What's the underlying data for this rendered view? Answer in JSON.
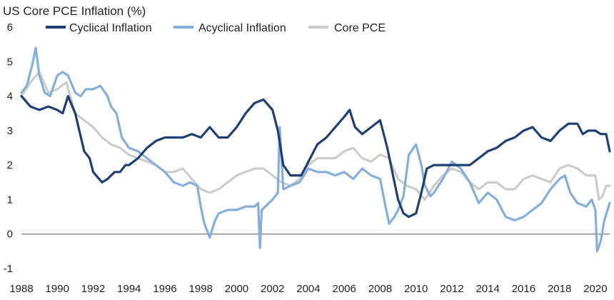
{
  "chart_data": {
    "type": "line",
    "title": "US Core PCE Inflation (%)",
    "xlabel": "",
    "ylabel": "",
    "xlim": [
      1988,
      2020.8
    ],
    "ylim": [
      -1,
      6
    ],
    "x_ticks": [
      "1988",
      "1990",
      "1992",
      "1994",
      "1996",
      "1998",
      "2000",
      "2002",
      "2004",
      "2006",
      "2008",
      "2010",
      "2012",
      "2014",
      "2016",
      "2018",
      "2020"
    ],
    "y_ticks": [
      "6",
      "5",
      "4",
      "3",
      "2",
      "1",
      "0",
      "-1"
    ],
    "grid": false,
    "legend_position": "top",
    "series": [
      {
        "name": "Cyclical Inflation",
        "color": "#1f3f73",
        "width": 3.2,
        "x": [
          1988.0,
          1988.5,
          1989.0,
          1989.5,
          1990.0,
          1990.3,
          1990.6,
          1991.0,
          1991.5,
          1991.8,
          1992.0,
          1992.5,
          1992.8,
          1993.2,
          1993.5,
          1993.8,
          1994.0,
          1994.5,
          1995.0,
          1995.5,
          1996.0,
          1996.5,
          1997.0,
          1997.5,
          1998.0,
          1998.5,
          1999.0,
          1999.5,
          2000.0,
          2000.5,
          2001.0,
          2001.5,
          2002.0,
          2002.3,
          2002.6,
          2003.0,
          2003.3,
          2003.6,
          2004.0,
          2004.5,
          2005.0,
          2005.5,
          2006.0,
          2006.3,
          2006.6,
          2007.0,
          2007.5,
          2008.0,
          2008.4,
          2008.8,
          2009.0,
          2009.3,
          2009.6,
          2010.0,
          2010.3,
          2010.6,
          2011.0,
          2011.5,
          2012.0,
          2012.5,
          2013.0,
          2013.5,
          2014.0,
          2014.5,
          2015.0,
          2015.5,
          2016.0,
          2016.5,
          2017.0,
          2017.5,
          2018.0,
          2018.5,
          2019.0,
          2019.3,
          2019.6,
          2020.0,
          2020.3,
          2020.6,
          2020.8
        ],
        "y": [
          4.0,
          3.7,
          3.6,
          3.7,
          3.6,
          3.5,
          4.0,
          3.5,
          2.4,
          2.2,
          1.8,
          1.5,
          1.6,
          1.8,
          1.8,
          2.0,
          2.0,
          2.2,
          2.5,
          2.7,
          2.8,
          2.8,
          2.8,
          2.9,
          2.8,
          3.1,
          2.8,
          2.8,
          3.1,
          3.5,
          3.8,
          3.9,
          3.6,
          3.0,
          2.0,
          1.7,
          1.7,
          1.7,
          2.1,
          2.6,
          2.8,
          3.1,
          3.4,
          3.6,
          3.1,
          2.9,
          3.1,
          3.3,
          2.5,
          1.5,
          1.0,
          0.6,
          0.5,
          0.6,
          1.2,
          1.9,
          2.0,
          2.0,
          2.0,
          2.0,
          2.0,
          2.2,
          2.4,
          2.5,
          2.7,
          2.8,
          3.0,
          3.1,
          2.8,
          2.7,
          3.0,
          3.2,
          3.2,
          2.9,
          3.0,
          3.0,
          2.9,
          2.9,
          2.4
        ]
      },
      {
        "name": "Acyclical Inflation",
        "color": "#85aedb",
        "width": 3.2,
        "x": [
          1988.0,
          1988.3,
          1988.6,
          1988.8,
          1989.0,
          1989.3,
          1989.6,
          1990.0,
          1990.3,
          1990.6,
          1991.0,
          1991.3,
          1991.6,
          1992.0,
          1992.4,
          1992.8,
          1993.0,
          1993.3,
          1993.6,
          1994.0,
          1994.5,
          1995.0,
          1995.5,
          1996.0,
          1996.5,
          1997.0,
          1997.4,
          1997.8,
          1998.0,
          1998.2,
          1998.5,
          1998.8,
          1999.0,
          1999.5,
          2000.0,
          2000.5,
          2001.0,
          2001.2,
          2001.3,
          2001.4,
          2001.6,
          2002.0,
          2002.3,
          2002.4,
          2002.6,
          2003.0,
          2003.5,
          2004.0,
          2004.5,
          2005.0,
          2005.5,
          2006.0,
          2006.5,
          2007.0,
          2007.5,
          2008.0,
          2008.3,
          2008.5,
          2008.8,
          2009.0,
          2009.3,
          2009.6,
          2010.0,
          2010.3,
          2010.5,
          2010.8,
          2011.0,
          2011.5,
          2012.0,
          2012.5,
          2013.0,
          2013.5,
          2014.0,
          2014.5,
          2015.0,
          2015.5,
          2016.0,
          2016.5,
          2017.0,
          2017.5,
          2018.0,
          2018.3,
          2018.6,
          2019.0,
          2019.5,
          2019.8,
          2020.0,
          2020.1,
          2020.3,
          2020.5,
          2020.8
        ],
        "y": [
          4.1,
          4.3,
          4.9,
          5.4,
          4.6,
          4.1,
          4.0,
          4.6,
          4.7,
          4.6,
          4.1,
          4.0,
          4.2,
          4.2,
          4.3,
          4.0,
          3.7,
          3.5,
          2.8,
          2.5,
          2.4,
          2.2,
          2.0,
          1.8,
          1.5,
          1.4,
          1.5,
          1.4,
          0.8,
          0.3,
          -0.1,
          0.4,
          0.6,
          0.7,
          0.7,
          0.8,
          0.8,
          0.9,
          -0.4,
          0.7,
          0.8,
          1.0,
          1.2,
          3.1,
          1.3,
          1.4,
          1.5,
          1.9,
          1.8,
          1.8,
          1.7,
          1.8,
          1.6,
          1.9,
          1.7,
          1.6,
          0.8,
          0.3,
          0.5,
          0.7,
          1.1,
          2.3,
          2.6,
          2.0,
          1.4,
          1.1,
          1.2,
          1.6,
          2.1,
          1.9,
          1.5,
          0.9,
          1.2,
          1.0,
          0.5,
          0.4,
          0.5,
          0.7,
          0.9,
          1.3,
          1.6,
          1.7,
          1.2,
          0.9,
          0.8,
          1.0,
          0.7,
          -0.5,
          -0.2,
          0.4,
          0.9
        ]
      },
      {
        "name": "Core PCE",
        "color": "#cccccc",
        "width": 3.2,
        "x": [
          1988.0,
          1988.5,
          1989.0,
          1989.5,
          1990.0,
          1990.5,
          1991.0,
          1991.5,
          1992.0,
          1992.5,
          1993.0,
          1993.5,
          1994.0,
          1994.5,
          1995.0,
          1995.5,
          1996.0,
          1996.5,
          1997.0,
          1997.5,
          1998.0,
          1998.5,
          1999.0,
          1999.5,
          2000.0,
          2000.5,
          2001.0,
          2001.5,
          2002.0,
          2002.5,
          2003.0,
          2003.5,
          2004.0,
          2004.5,
          2005.0,
          2005.5,
          2006.0,
          2006.5,
          2007.0,
          2007.5,
          2008.0,
          2008.5,
          2009.0,
          2009.5,
          2010.0,
          2010.5,
          2011.0,
          2011.5,
          2012.0,
          2012.5,
          2013.0,
          2013.5,
          2014.0,
          2014.5,
          2015.0,
          2015.5,
          2016.0,
          2016.5,
          2017.0,
          2017.5,
          2018.0,
          2018.5,
          2019.0,
          2019.5,
          2020.0,
          2020.2,
          2020.4,
          2020.6,
          2020.8
        ],
        "y": [
          4.0,
          4.4,
          4.7,
          4.1,
          4.2,
          4.4,
          3.5,
          3.3,
          3.1,
          2.8,
          2.6,
          2.5,
          2.3,
          2.2,
          2.1,
          2.0,
          1.8,
          1.8,
          1.9,
          1.6,
          1.3,
          1.2,
          1.3,
          1.5,
          1.7,
          1.8,
          1.9,
          1.9,
          1.7,
          1.5,
          1.4,
          1.6,
          2.0,
          2.2,
          2.2,
          2.2,
          2.4,
          2.5,
          2.2,
          2.1,
          2.3,
          2.2,
          1.6,
          1.4,
          1.3,
          1.0,
          1.4,
          1.7,
          1.9,
          1.8,
          1.5,
          1.3,
          1.5,
          1.5,
          1.3,
          1.3,
          1.6,
          1.7,
          1.6,
          1.5,
          1.9,
          2.0,
          1.9,
          1.7,
          1.7,
          1.0,
          1.1,
          1.4,
          1.4
        ]
      }
    ]
  }
}
